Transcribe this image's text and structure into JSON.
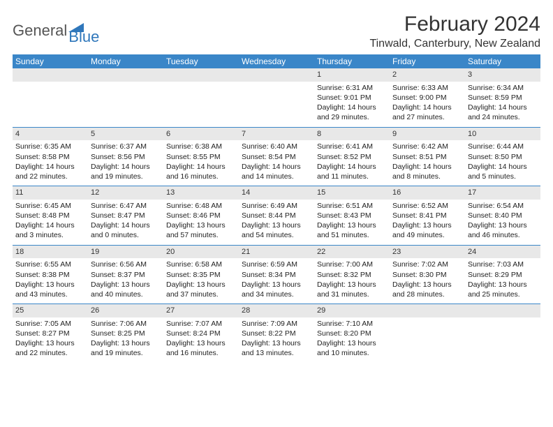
{
  "brand": {
    "part1": "General",
    "part2": "Blue"
  },
  "title": "February 2024",
  "location": "Tinwald, Canterbury, New Zealand",
  "colors": {
    "header_bg": "#3a86c8",
    "daynum_bg": "#e8e8e8",
    "week_divider": "#3a86c8",
    "brand_blue": "#2f77bb",
    "text": "#222222"
  },
  "weekdays": [
    "Sunday",
    "Monday",
    "Tuesday",
    "Wednesday",
    "Thursday",
    "Friday",
    "Saturday"
  ],
  "weeks": [
    [
      null,
      null,
      null,
      null,
      {
        "n": "1",
        "sr": "6:31 AM",
        "ss": "9:01 PM",
        "dl": "14 hours and 29 minutes."
      },
      {
        "n": "2",
        "sr": "6:33 AM",
        "ss": "9:00 PM",
        "dl": "14 hours and 27 minutes."
      },
      {
        "n": "3",
        "sr": "6:34 AM",
        "ss": "8:59 PM",
        "dl": "14 hours and 24 minutes."
      }
    ],
    [
      {
        "n": "4",
        "sr": "6:35 AM",
        "ss": "8:58 PM",
        "dl": "14 hours and 22 minutes."
      },
      {
        "n": "5",
        "sr": "6:37 AM",
        "ss": "8:56 PM",
        "dl": "14 hours and 19 minutes."
      },
      {
        "n": "6",
        "sr": "6:38 AM",
        "ss": "8:55 PM",
        "dl": "14 hours and 16 minutes."
      },
      {
        "n": "7",
        "sr": "6:40 AM",
        "ss": "8:54 PM",
        "dl": "14 hours and 14 minutes."
      },
      {
        "n": "8",
        "sr": "6:41 AM",
        "ss": "8:52 PM",
        "dl": "14 hours and 11 minutes."
      },
      {
        "n": "9",
        "sr": "6:42 AM",
        "ss": "8:51 PM",
        "dl": "14 hours and 8 minutes."
      },
      {
        "n": "10",
        "sr": "6:44 AM",
        "ss": "8:50 PM",
        "dl": "14 hours and 5 minutes."
      }
    ],
    [
      {
        "n": "11",
        "sr": "6:45 AM",
        "ss": "8:48 PM",
        "dl": "14 hours and 3 minutes."
      },
      {
        "n": "12",
        "sr": "6:47 AM",
        "ss": "8:47 PM",
        "dl": "14 hours and 0 minutes."
      },
      {
        "n": "13",
        "sr": "6:48 AM",
        "ss": "8:46 PM",
        "dl": "13 hours and 57 minutes."
      },
      {
        "n": "14",
        "sr": "6:49 AM",
        "ss": "8:44 PM",
        "dl": "13 hours and 54 minutes."
      },
      {
        "n": "15",
        "sr": "6:51 AM",
        "ss": "8:43 PM",
        "dl": "13 hours and 51 minutes."
      },
      {
        "n": "16",
        "sr": "6:52 AM",
        "ss": "8:41 PM",
        "dl": "13 hours and 49 minutes."
      },
      {
        "n": "17",
        "sr": "6:54 AM",
        "ss": "8:40 PM",
        "dl": "13 hours and 46 minutes."
      }
    ],
    [
      {
        "n": "18",
        "sr": "6:55 AM",
        "ss": "8:38 PM",
        "dl": "13 hours and 43 minutes."
      },
      {
        "n": "19",
        "sr": "6:56 AM",
        "ss": "8:37 PM",
        "dl": "13 hours and 40 minutes."
      },
      {
        "n": "20",
        "sr": "6:58 AM",
        "ss": "8:35 PM",
        "dl": "13 hours and 37 minutes."
      },
      {
        "n": "21",
        "sr": "6:59 AM",
        "ss": "8:34 PM",
        "dl": "13 hours and 34 minutes."
      },
      {
        "n": "22",
        "sr": "7:00 AM",
        "ss": "8:32 PM",
        "dl": "13 hours and 31 minutes."
      },
      {
        "n": "23",
        "sr": "7:02 AM",
        "ss": "8:30 PM",
        "dl": "13 hours and 28 minutes."
      },
      {
        "n": "24",
        "sr": "7:03 AM",
        "ss": "8:29 PM",
        "dl": "13 hours and 25 minutes."
      }
    ],
    [
      {
        "n": "25",
        "sr": "7:05 AM",
        "ss": "8:27 PM",
        "dl": "13 hours and 22 minutes."
      },
      {
        "n": "26",
        "sr": "7:06 AM",
        "ss": "8:25 PM",
        "dl": "13 hours and 19 minutes."
      },
      {
        "n": "27",
        "sr": "7:07 AM",
        "ss": "8:24 PM",
        "dl": "13 hours and 16 minutes."
      },
      {
        "n": "28",
        "sr": "7:09 AM",
        "ss": "8:22 PM",
        "dl": "13 hours and 13 minutes."
      },
      {
        "n": "29",
        "sr": "7:10 AM",
        "ss": "8:20 PM",
        "dl": "13 hours and 10 minutes."
      },
      null,
      null
    ]
  ],
  "labels": {
    "sunrise": "Sunrise:",
    "sunset": "Sunset:",
    "daylight": "Daylight:"
  }
}
